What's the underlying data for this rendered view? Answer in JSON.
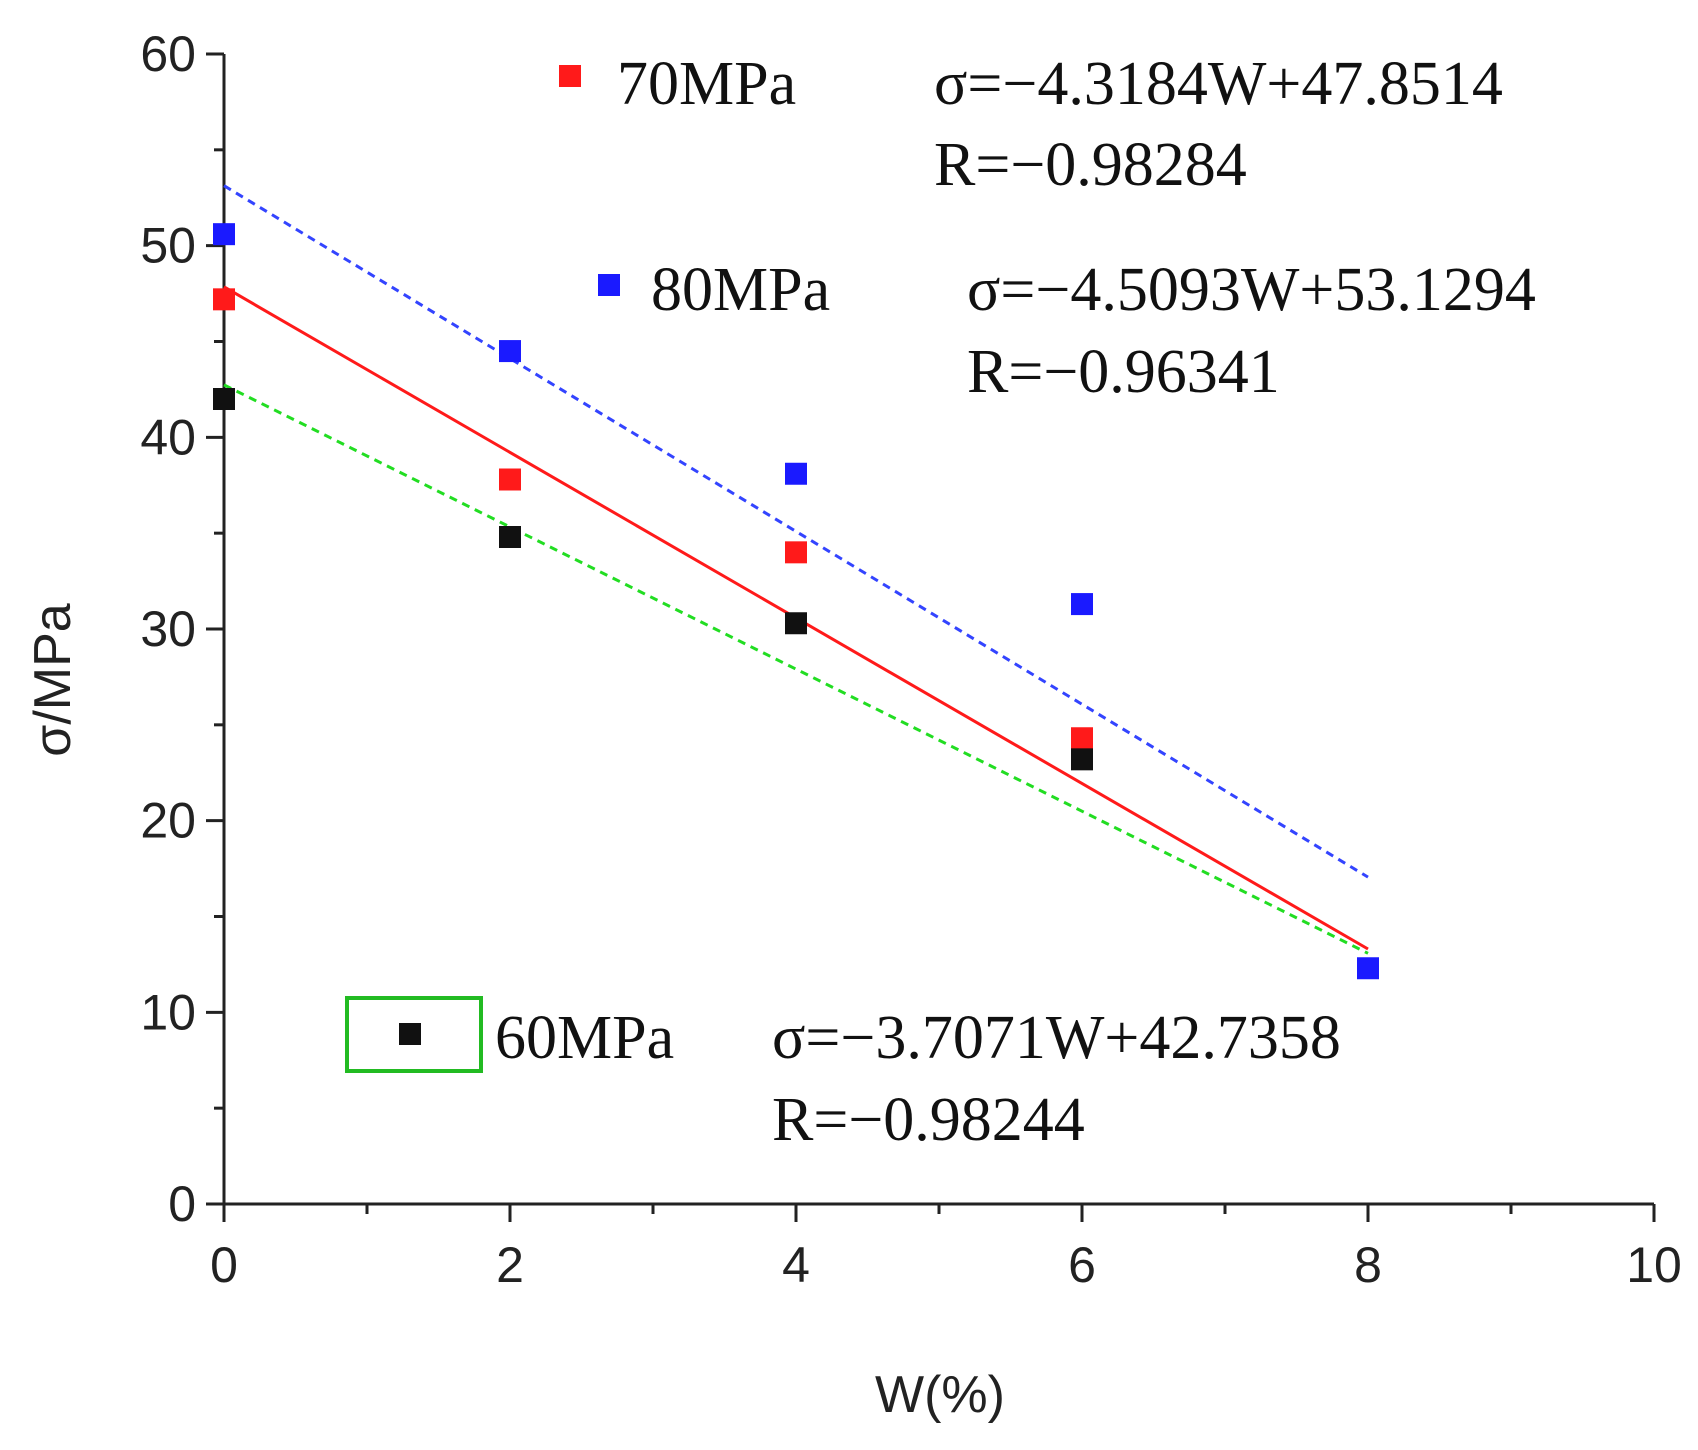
{
  "chart_data": {
    "type": "scatter",
    "xlabel": "W(%)",
    "ylabel": "σ/MPa",
    "xlim": [
      0,
      10
    ],
    "ylim": [
      0,
      60
    ],
    "x_ticks": [
      0,
      2,
      4,
      6,
      8,
      10
    ],
    "y_ticks": [
      0,
      10,
      20,
      30,
      40,
      50,
      60
    ],
    "x_tick_labels": [
      "0",
      "2",
      "4",
      "6",
      "8",
      "10"
    ],
    "y_tick_labels": [
      "0",
      "10",
      "20",
      "30",
      "40",
      "50",
      "60"
    ],
    "series": [
      {
        "name": "70MPa",
        "color": "#ff1a1a",
        "line_color": "#ff1a1a",
        "line_style": "solid",
        "x": [
          0,
          2,
          4,
          6
        ],
        "values": [
          47.2,
          37.8,
          34.0,
          24.3
        ],
        "fit": {
          "slope": -4.3184,
          "intercept": 47.8514,
          "x_range": [
            0,
            8
          ]
        },
        "equation": "σ=−4.3184W+47.8514",
        "r_text": "R=−0.98284"
      },
      {
        "name": "80MPa",
        "color": "#1a1aff",
        "line_color": "#3344ff",
        "line_style": "dashed",
        "x": [
          0,
          2,
          4,
          6,
          8
        ],
        "values": [
          50.6,
          44.5,
          38.1,
          31.3,
          12.3
        ],
        "fit": {
          "slope": -4.5093,
          "intercept": 53.1294,
          "x_range": [
            0,
            8
          ]
        },
        "equation": "σ=−4.5093W+53.1294",
        "r_text": "R=−0.96341"
      },
      {
        "name": "60MPa",
        "color": "#111111",
        "line_color": "#22dd22",
        "line_style": "dashed",
        "x": [
          0,
          2,
          4,
          6
        ],
        "values": [
          42.0,
          34.8,
          30.3,
          23.2
        ],
        "fit": {
          "slope": -3.7071,
          "intercept": 42.7358,
          "x_range": [
            0,
            8
          ]
        },
        "equation": "σ=−3.7071W+42.7358",
        "r_text": "R=−0.98244"
      }
    ]
  }
}
